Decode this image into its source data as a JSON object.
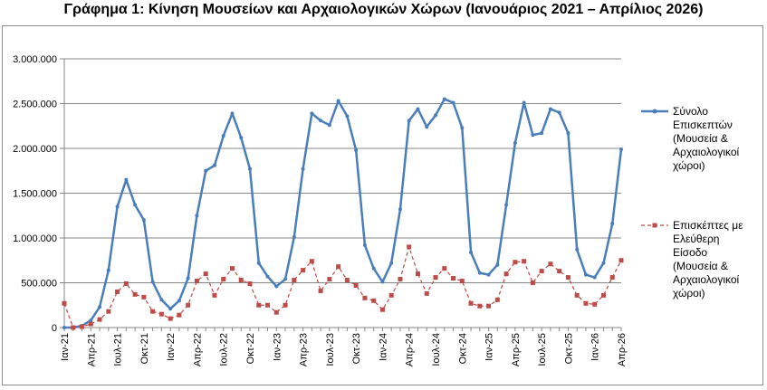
{
  "title": "Γράφημα 1: Κίνηση Μουσείων και Αρχαιολογικών Χώρων (Ιανουάριος 2021 – Απρίλιος 2026)",
  "colors": {
    "series1": "#4a7ebb",
    "series2": "#be4b48",
    "grid": "#868686",
    "axis": "#868686"
  },
  "chart_data": {
    "type": "line",
    "title": "Γράφημα 1: Κίνηση Μουσείων και Αρχαιολογικών Χώρων (Ιανουάριος 2021 – Απρίλιος 2026)",
    "ylim": [
      0,
      3000000
    ],
    "yticks": [
      0,
      500000,
      1000000,
      1500000,
      2000000,
      2500000,
      3000000
    ],
    "ytick_labels": [
      "0",
      "500.000",
      "1.000.000",
      "1.500.000",
      "2.000.000",
      "2.500.000",
      "3.000.000"
    ],
    "grid": true,
    "legend_position": "right",
    "x_labels": [
      {
        "index": 0,
        "text": "Ιαν-21"
      },
      {
        "index": 3,
        "text": "Απρ-21"
      },
      {
        "index": 6,
        "text": "Ιουλ-21"
      },
      {
        "index": 9,
        "text": "Οκτ-21"
      },
      {
        "index": 12,
        "text": "Ιαν-22"
      },
      {
        "index": 15,
        "text": "Απρ-22"
      },
      {
        "index": 18,
        "text": "Ιουλ-22"
      },
      {
        "index": 21,
        "text": "Οκτ-22"
      },
      {
        "index": 24,
        "text": "Ιαν-23"
      },
      {
        "index": 27,
        "text": "Απρ-23"
      },
      {
        "index": 30,
        "text": "Ιουλ-23"
      },
      {
        "index": 33,
        "text": "Οκτ-23"
      },
      {
        "index": 36,
        "text": "Ιαν-24"
      },
      {
        "index": 39,
        "text": "Απρ-24"
      },
      {
        "index": 42,
        "text": "Ιουλ-24"
      },
      {
        "index": 45,
        "text": "Οκτ-24"
      },
      {
        "index": 48,
        "text": "Ιαν-25"
      },
      {
        "index": 51,
        "text": "Απρ-25"
      },
      {
        "index": 54,
        "text": "Ιουλ-25"
      },
      {
        "index": 57,
        "text": "Οκτ-25"
      },
      {
        "index": 60,
        "text": "Ιαν-26"
      },
      {
        "index": 63,
        "text": "Απρ-26"
      }
    ],
    "series": [
      {
        "name": "Σύνολο Επισκεπτών (Μουσεία & Αρχαιολογικοί χώροι)",
        "legend_lines": [
          "Σύνολο",
          "Επισκεπτών",
          "(Μουσεία &",
          "Αρχαιολογικοί",
          "χώροι)"
        ],
        "style": "solid",
        "values": [
          0,
          0,
          20000,
          80000,
          230000,
          640000,
          1350000,
          1650000,
          1370000,
          1200000,
          510000,
          310000,
          210000,
          300000,
          550000,
          1250000,
          1750000,
          1810000,
          2140000,
          2390000,
          2120000,
          1770000,
          720000,
          570000,
          460000,
          540000,
          1010000,
          1770000,
          2390000,
          2310000,
          2260000,
          2530000,
          2360000,
          1980000,
          920000,
          660000,
          510000,
          720000,
          1320000,
          2310000,
          2440000,
          2240000,
          2370000,
          2550000,
          2510000,
          2230000,
          840000,
          610000,
          590000,
          700000,
          1370000,
          2060000,
          2510000,
          2150000,
          2170000,
          2440000,
          2400000,
          2170000,
          870000,
          590000,
          560000,
          720000,
          1160000,
          1990000
        ]
      },
      {
        "name": "Επισκέπτες με Ελεύθερη Είσοδο (Μουσεία & Αρχαιολογικοί χώροι)",
        "legend_lines": [
          "Επισκέπτες με",
          "Ελεύθερη",
          "Είσοδο",
          "(Μουσεία &",
          "Αρχαιολογικοί",
          "χώροι)"
        ],
        "style": "dashed",
        "values": [
          270000,
          0,
          10000,
          40000,
          90000,
          180000,
          400000,
          490000,
          370000,
          340000,
          180000,
          150000,
          100000,
          140000,
          250000,
          520000,
          600000,
          360000,
          540000,
          660000,
          530000,
          490000,
          250000,
          250000,
          170000,
          250000,
          530000,
          640000,
          740000,
          410000,
          540000,
          680000,
          530000,
          470000,
          330000,
          300000,
          200000,
          360000,
          540000,
          900000,
          600000,
          380000,
          560000,
          660000,
          550000,
          520000,
          270000,
          240000,
          240000,
          310000,
          600000,
          730000,
          740000,
          500000,
          630000,
          710000,
          630000,
          560000,
          360000,
          270000,
          260000,
          360000,
          560000,
          750000
        ]
      }
    ]
  }
}
